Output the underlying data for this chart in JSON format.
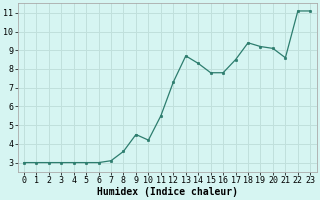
{
  "x": [
    0,
    1,
    2,
    3,
    4,
    5,
    6,
    7,
    8,
    9,
    10,
    11,
    12,
    13,
    14,
    15,
    16,
    17,
    18,
    19,
    20,
    21,
    22,
    23
  ],
  "y": [
    3.0,
    3.0,
    3.0,
    3.0,
    3.0,
    3.0,
    3.0,
    3.1,
    3.6,
    4.5,
    4.2,
    5.5,
    7.3,
    8.7,
    8.3,
    7.8,
    7.8,
    8.5,
    9.4,
    9.2,
    9.1,
    8.6,
    11.1,
    11.1
  ],
  "xlim": [
    -0.5,
    23.5
  ],
  "ylim": [
    2.5,
    11.5
  ],
  "yticks": [
    3,
    4,
    5,
    6,
    7,
    8,
    9,
    10,
    11
  ],
  "xticks": [
    0,
    1,
    2,
    3,
    4,
    5,
    6,
    7,
    8,
    9,
    10,
    11,
    12,
    13,
    14,
    15,
    16,
    17,
    18,
    19,
    20,
    21,
    22,
    23
  ],
  "xlabel": "Humidex (Indice chaleur)",
  "line_color": "#2d7d6e",
  "marker_color": "#2d7d6e",
  "bg_color": "#d6f5f2",
  "grid_color": "#c0e0dc",
  "tick_fontsize": 6,
  "label_fontsize": 7,
  "label_fontweight": "bold"
}
